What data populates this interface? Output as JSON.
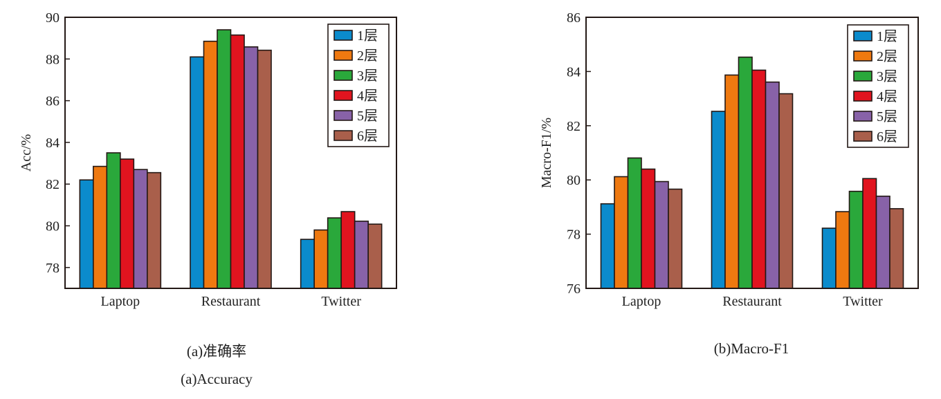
{
  "chart_data": [
    {
      "type": "bar",
      "ylabel": "Acc/%",
      "ylim": [
        77,
        90
      ],
      "yticks": [
        78,
        80,
        82,
        84,
        86,
        88,
        90
      ],
      "categories": [
        "Laptop",
        "Restaurant",
        "Twitter"
      ],
      "legend_position": "top-right",
      "series": [
        {
          "name": "1层",
          "color": "#0b8bcc",
          "values": [
            82.2,
            88.1,
            79.35
          ]
        },
        {
          "name": "2层",
          "color": "#ef7910",
          "values": [
            82.85,
            88.85,
            79.8
          ]
        },
        {
          "name": "3层",
          "color": "#2aa83b",
          "values": [
            83.5,
            89.4,
            80.38
          ]
        },
        {
          "name": "4层",
          "color": "#e1141f",
          "values": [
            83.2,
            89.15,
            80.68
          ]
        },
        {
          "name": "5层",
          "color": "#8862a8",
          "values": [
            82.7,
            88.58,
            80.22
          ]
        },
        {
          "name": "6层",
          "color": "#a95f4b",
          "values": [
            82.55,
            88.42,
            80.08
          ]
        }
      ],
      "caption": [
        "(a)准确率",
        "(a)Accuracy"
      ]
    },
    {
      "type": "bar",
      "ylabel": "Macro-F1/%",
      "ylim": [
        76,
        86
      ],
      "yticks": [
        76,
        78,
        80,
        82,
        84,
        86
      ],
      "categories": [
        "Laptop",
        "Restaurant",
        "Twitter"
      ],
      "legend_position": "top-right",
      "series": [
        {
          "name": "1层",
          "color": "#0b8bcc",
          "values": [
            79.12,
            82.53,
            78.22
          ]
        },
        {
          "name": "2层",
          "color": "#ef7910",
          "values": [
            80.12,
            83.87,
            78.83
          ]
        },
        {
          "name": "3层",
          "color": "#2aa83b",
          "values": [
            80.81,
            84.53,
            79.58
          ]
        },
        {
          "name": "4层",
          "color": "#e1141f",
          "values": [
            80.4,
            84.05,
            80.05
          ]
        },
        {
          "name": "5层",
          "color": "#8862a8",
          "values": [
            79.94,
            83.61,
            79.4
          ]
        },
        {
          "name": "6层",
          "color": "#a95f4b",
          "values": [
            79.66,
            83.18,
            78.94
          ]
        }
      ],
      "caption": [
        "(b)Macro-F1"
      ]
    }
  ]
}
